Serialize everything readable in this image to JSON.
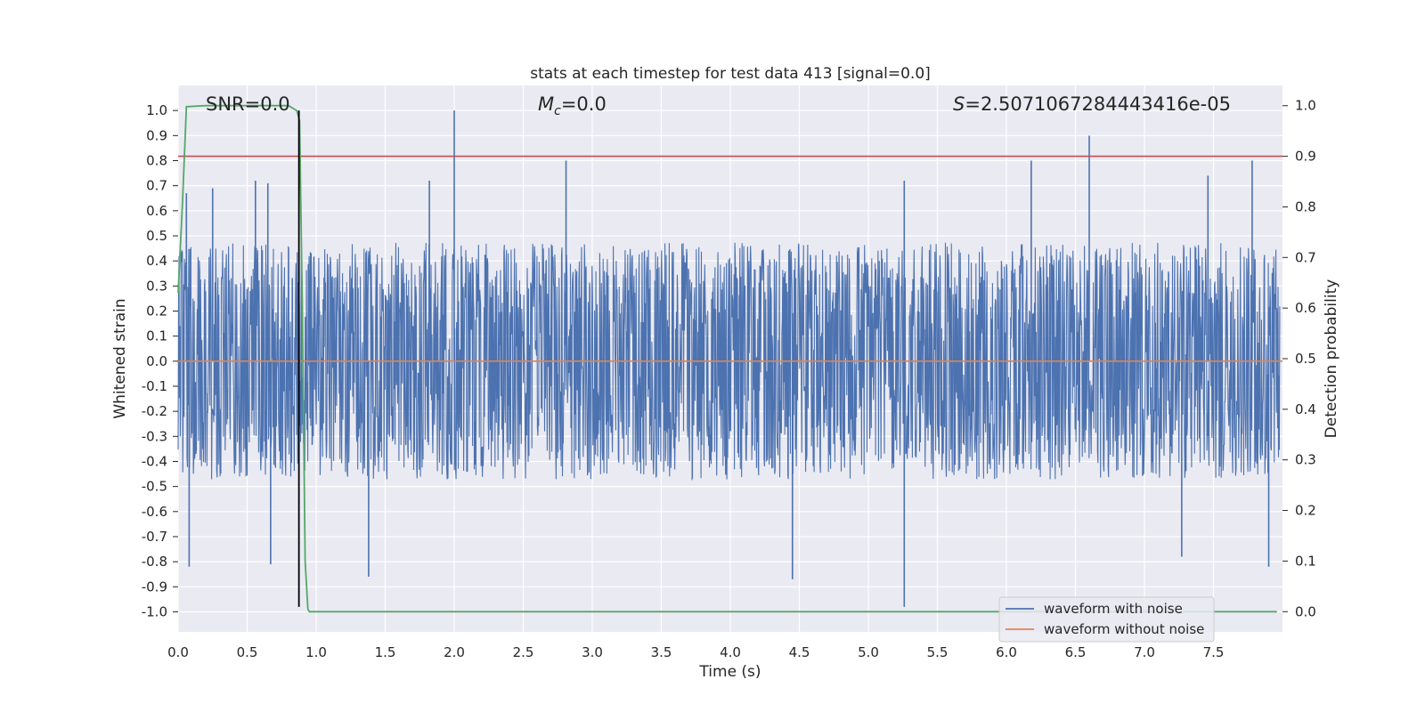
{
  "chart_data": {
    "type": "line",
    "title": "stats at each timestep for test data 413 [signal=0.0]",
    "xlabel": "Time (s)",
    "ylabel": "Whitened strain",
    "ylabel_right": "Detection probability",
    "xlim": [
      0.0,
      8.0
    ],
    "ylim": [
      -1.08,
      1.1
    ],
    "ylim_right": [
      -0.04,
      1.04
    ],
    "x_ticks": [
      0.0,
      0.5,
      1.0,
      1.5,
      2.0,
      2.5,
      3.0,
      3.5,
      4.0,
      4.5,
      5.0,
      5.5,
      6.0,
      6.5,
      7.0,
      7.5
    ],
    "x_tick_labels": [
      "0.0",
      "0.5",
      "1.0",
      "1.5",
      "2.0",
      "2.5",
      "3.0",
      "3.5",
      "4.0",
      "4.5",
      "5.0",
      "5.5",
      "6.0",
      "6.5",
      "7.0",
      "7.5"
    ],
    "y_ticks": [
      1.0,
      0.9,
      0.8,
      0.7,
      0.6,
      0.5,
      0.4,
      0.3,
      0.2,
      0.1,
      0.0,
      -0.1,
      -0.2,
      -0.3,
      -0.4,
      -0.5,
      -0.6,
      -0.7,
      -0.8,
      -0.9,
      -1.0
    ],
    "y_tick_labels": [
      "1.0",
      "0.9",
      "0.8",
      "0.7",
      "0.6",
      "0.5",
      "0.4",
      "0.3",
      "0.2",
      "0.1",
      "0.0",
      "-0.1",
      "-0.2",
      "-0.3",
      "-0.4",
      "-0.5",
      "-0.6",
      "-0.7",
      "-0.8",
      "-0.9",
      "-1.0"
    ],
    "y_right_ticks": [
      1.0,
      0.9,
      0.8,
      0.7,
      0.6,
      0.5,
      0.4,
      0.3,
      0.2,
      0.1,
      0.0
    ],
    "y_right_tick_labels": [
      "1.0",
      "0.9",
      "0.8",
      "0.7",
      "0.6",
      "0.5",
      "0.4",
      "0.3",
      "0.2",
      "0.1",
      "0.0"
    ],
    "grid": true,
    "annotations": {
      "snr": "SNR=0.0",
      "mc_symbol": "M",
      "mc_subscript": "c",
      "mc_value": "=0.0",
      "s_symbol": "S",
      "s_value": "=2.5071067284443416e-05"
    },
    "legend": {
      "placement": "lower-right",
      "entries": [
        "waveform with noise",
        "waveform without noise"
      ]
    },
    "series": [
      {
        "name": "waveform with noise",
        "color": "#4c72b0",
        "axis": "left",
        "style": "dense noise",
        "envelope": {
          "x": [
            0.0,
            0.5,
            1.0,
            1.5,
            2.0,
            2.5,
            3.0,
            3.5,
            4.0,
            4.5,
            5.0,
            5.5,
            6.0,
            6.5,
            7.0,
            7.5,
            8.0
          ],
          "upper": [
            0.45,
            0.45,
            0.45,
            0.45,
            0.45,
            0.45,
            0.45,
            0.45,
            0.45,
            0.45,
            0.45,
            0.45,
            0.45,
            0.45,
            0.45,
            0.45,
            0.45
          ],
          "lower": [
            -0.45,
            -0.45,
            -0.45,
            -0.45,
            -0.45,
            -0.45,
            -0.45,
            -0.45,
            -0.45,
            -0.45,
            -0.45,
            -0.45,
            -0.45,
            -0.45,
            -0.45,
            -0.45,
            -0.45
          ]
        },
        "spikes": [
          {
            "x": 0.06,
            "y": 0.67
          },
          {
            "x": 0.08,
            "y": -0.82
          },
          {
            "x": 0.25,
            "y": 0.69
          },
          {
            "x": 0.56,
            "y": 0.72
          },
          {
            "x": 0.65,
            "y": 0.71
          },
          {
            "x": 0.67,
            "y": -0.81
          },
          {
            "x": 1.38,
            "y": -0.86
          },
          {
            "x": 1.82,
            "y": 0.72
          },
          {
            "x": 2.0,
            "y": 1.0
          },
          {
            "x": 2.81,
            "y": 0.8
          },
          {
            "x": 4.45,
            "y": -0.87
          },
          {
            "x": 5.26,
            "y": -0.98
          },
          {
            "x": 5.26,
            "y": 0.72
          },
          {
            "x": 6.18,
            "y": 0.8
          },
          {
            "x": 6.6,
            "y": 0.9
          },
          {
            "x": 7.27,
            "y": -0.78
          },
          {
            "x": 7.46,
            "y": 0.74
          },
          {
            "x": 7.78,
            "y": 0.8
          },
          {
            "x": 7.9,
            "y": -0.82
          }
        ]
      },
      {
        "name": "waveform without noise",
        "color": "#dd8452",
        "axis": "left",
        "x": [
          0.0,
          8.0
        ],
        "y": [
          0.0,
          0.0
        ]
      },
      {
        "name": "",
        "color": "#55a868",
        "axis": "right",
        "x": [
          0.0,
          0.03,
          0.06,
          0.2,
          0.5,
          0.75,
          0.8,
          0.86,
          0.88,
          0.9,
          0.92,
          0.94,
          0.95,
          1.2,
          2.0,
          4.0,
          6.0,
          7.96
        ],
        "y": [
          0.63,
          0.8,
          0.998,
          1.0,
          1.0,
          1.0,
          1.0,
          0.99,
          0.97,
          0.6,
          0.1,
          0.005,
          0.0,
          0.0,
          0.0,
          0.0,
          0.0,
          0.0
        ]
      }
    ],
    "hline": {
      "axis": "right",
      "y": 0.9,
      "color": "#c44e52"
    },
    "vline": {
      "x": 0.875,
      "ymin": -0.98,
      "ymax": 1.0,
      "color": "#000000"
    }
  }
}
